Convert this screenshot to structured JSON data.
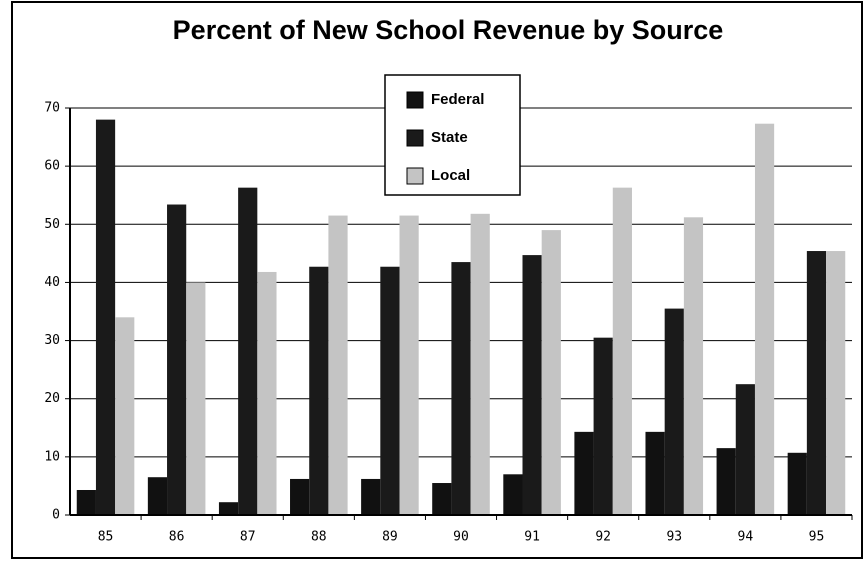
{
  "chart_data": {
    "type": "bar",
    "title": "Percent of New School Revenue by Source",
    "categories": [
      "85",
      "86",
      "87",
      "88",
      "89",
      "90",
      "91",
      "92",
      "93",
      "94",
      "95"
    ],
    "series": [
      {
        "name": "Federal",
        "color": "#111111",
        "values": [
          4.3,
          6.5,
          2.2,
          6.2,
          6.2,
          5.5,
          7,
          14.3,
          14.3,
          11.5,
          10.7
        ]
      },
      {
        "name": "State",
        "color": "#1a1a1a",
        "values": [
          68,
          53.4,
          56.3,
          42.7,
          42.7,
          43.5,
          44.7,
          30.5,
          35.5,
          22.5,
          45.4
        ]
      },
      {
        "name": "Local",
        "color": "#c4c4c4",
        "values": [
          34,
          40,
          41.8,
          51.5,
          51.5,
          51.8,
          49,
          56.3,
          51.2,
          67.3,
          45.4
        ]
      }
    ],
    "ylim": [
      0,
      70
    ],
    "yticks": [
      0,
      10,
      20,
      30,
      40,
      50,
      60,
      70
    ],
    "grid": true,
    "legend": "top"
  }
}
